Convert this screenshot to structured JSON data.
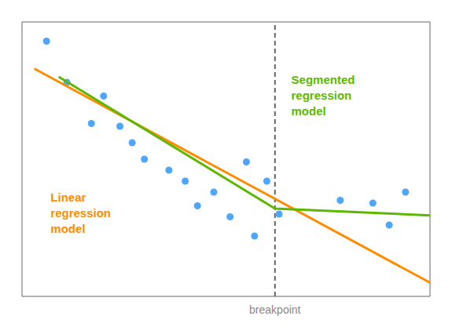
{
  "chart_data": {
    "type": "scatter",
    "xlim": [
      0.0,
      1.0
    ],
    "ylim": [
      0.0,
      1.0
    ],
    "xticks": [],
    "yticks": [],
    "tick_labels": false,
    "grid": false,
    "series": [
      {
        "type": "scatter",
        "color": "#4da6ff",
        "x": [
          0.06,
          0.11,
          0.2,
          0.17,
          0.24,
          0.27,
          0.3,
          0.36,
          0.4,
          0.47,
          0.43,
          0.51,
          0.55,
          0.6,
          0.63,
          0.78,
          0.86,
          0.94,
          0.9,
          0.57
        ],
        "values": [
          0.93,
          0.78,
          0.73,
          0.63,
          0.62,
          0.56,
          0.5,
          0.46,
          0.42,
          0.38,
          0.33,
          0.29,
          0.49,
          0.42,
          0.3,
          0.35,
          0.34,
          0.38,
          0.26,
          0.22
        ]
      },
      {
        "type": "line",
        "color": "#FF8C00",
        "x": [
          0.03,
          1.0
        ],
        "values": [
          0.83,
          0.05
        ]
      },
      {
        "type": "line",
        "color": "#5cb800",
        "x": [
          0.09,
          0.62,
          1.0
        ],
        "values": [
          0.8,
          0.32,
          0.295
        ]
      }
    ],
    "vlines": [
      {
        "x": 0.62,
        "color": "#666666",
        "line_style": "dashed",
        "label": "breakpoint",
        "label_color": "#888888"
      }
    ],
    "annotations": [
      {
        "text": "Linear\nregression\nmodel",
        "x": 0.07,
        "y": 0.3,
        "color": "#FF8C00"
      },
      {
        "text": "Segmented\nregression\nmodel",
        "x": 0.66,
        "y": 0.73,
        "color": "#5cb800"
      }
    ]
  }
}
